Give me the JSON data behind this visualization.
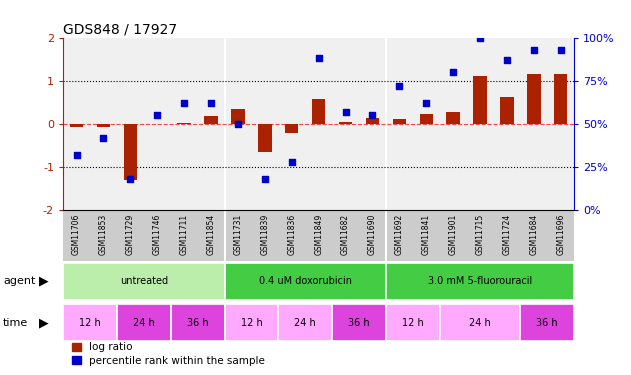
{
  "title": "GDS848 / 17927",
  "samples": [
    "GSM11706",
    "GSM11853",
    "GSM11729",
    "GSM11746",
    "GSM11711",
    "GSM11854",
    "GSM11731",
    "GSM11839",
    "GSM11836",
    "GSM11849",
    "GSM11682",
    "GSM11690",
    "GSM11692",
    "GSM11841",
    "GSM11901",
    "GSM11715",
    "GSM11724",
    "GSM11684",
    "GSM11696"
  ],
  "log_ratio": [
    -0.07,
    -0.08,
    -1.3,
    0.0,
    0.02,
    0.18,
    0.35,
    -0.65,
    -0.22,
    0.58,
    0.05,
    0.13,
    0.12,
    0.22,
    0.28,
    1.1,
    0.63,
    1.15,
    1.15
  ],
  "percentile": [
    32,
    42,
    18,
    55,
    62,
    62,
    50,
    18,
    28,
    88,
    57,
    55,
    72,
    62,
    80,
    100,
    87,
    93,
    93
  ],
  "bar_color": "#aa2200",
  "dot_color": "#0000cc",
  "left_ylim": [
    -2,
    2
  ],
  "right_ylim": [
    0,
    100
  ],
  "left_yticks": [
    -2,
    -1,
    0,
    1,
    2
  ],
  "right_yticks": [
    0,
    25,
    50,
    75,
    100
  ],
  "right_yticklabels": [
    "0%",
    "25%",
    "50%",
    "75%",
    "100%"
  ],
  "dotted_lines": [
    -1,
    0,
    1
  ],
  "agent_data": [
    {
      "label": "untreated",
      "start": 0,
      "end": 6,
      "color": "#bbeeaa"
    },
    {
      "label": "0.4 uM doxorubicin",
      "start": 6,
      "end": 12,
      "color": "#44cc44"
    },
    {
      "label": "3.0 mM 5-fluorouracil",
      "start": 12,
      "end": 19,
      "color": "#44cc44"
    }
  ],
  "time_data": [
    {
      "label": "12 h",
      "start": 0,
      "end": 2,
      "color": "#ffaaff"
    },
    {
      "label": "24 h",
      "start": 2,
      "end": 4,
      "color": "#dd44dd"
    },
    {
      "label": "36 h",
      "start": 4,
      "end": 6,
      "color": "#dd44dd"
    },
    {
      "label": "12 h",
      "start": 6,
      "end": 8,
      "color": "#ffaaff"
    },
    {
      "label": "24 h",
      "start": 8,
      "end": 10,
      "color": "#ffaaff"
    },
    {
      "label": "36 h",
      "start": 10,
      "end": 12,
      "color": "#dd44dd"
    },
    {
      "label": "12 h",
      "start": 12,
      "end": 14,
      "color": "#ffaaff"
    },
    {
      "label": "24 h",
      "start": 14,
      "end": 17,
      "color": "#ffaaff"
    },
    {
      "label": "36 h",
      "start": 17,
      "end": 19,
      "color": "#dd44dd"
    }
  ],
  "chart_bg": "#f0f0f0",
  "label_bg": "#cccccc"
}
